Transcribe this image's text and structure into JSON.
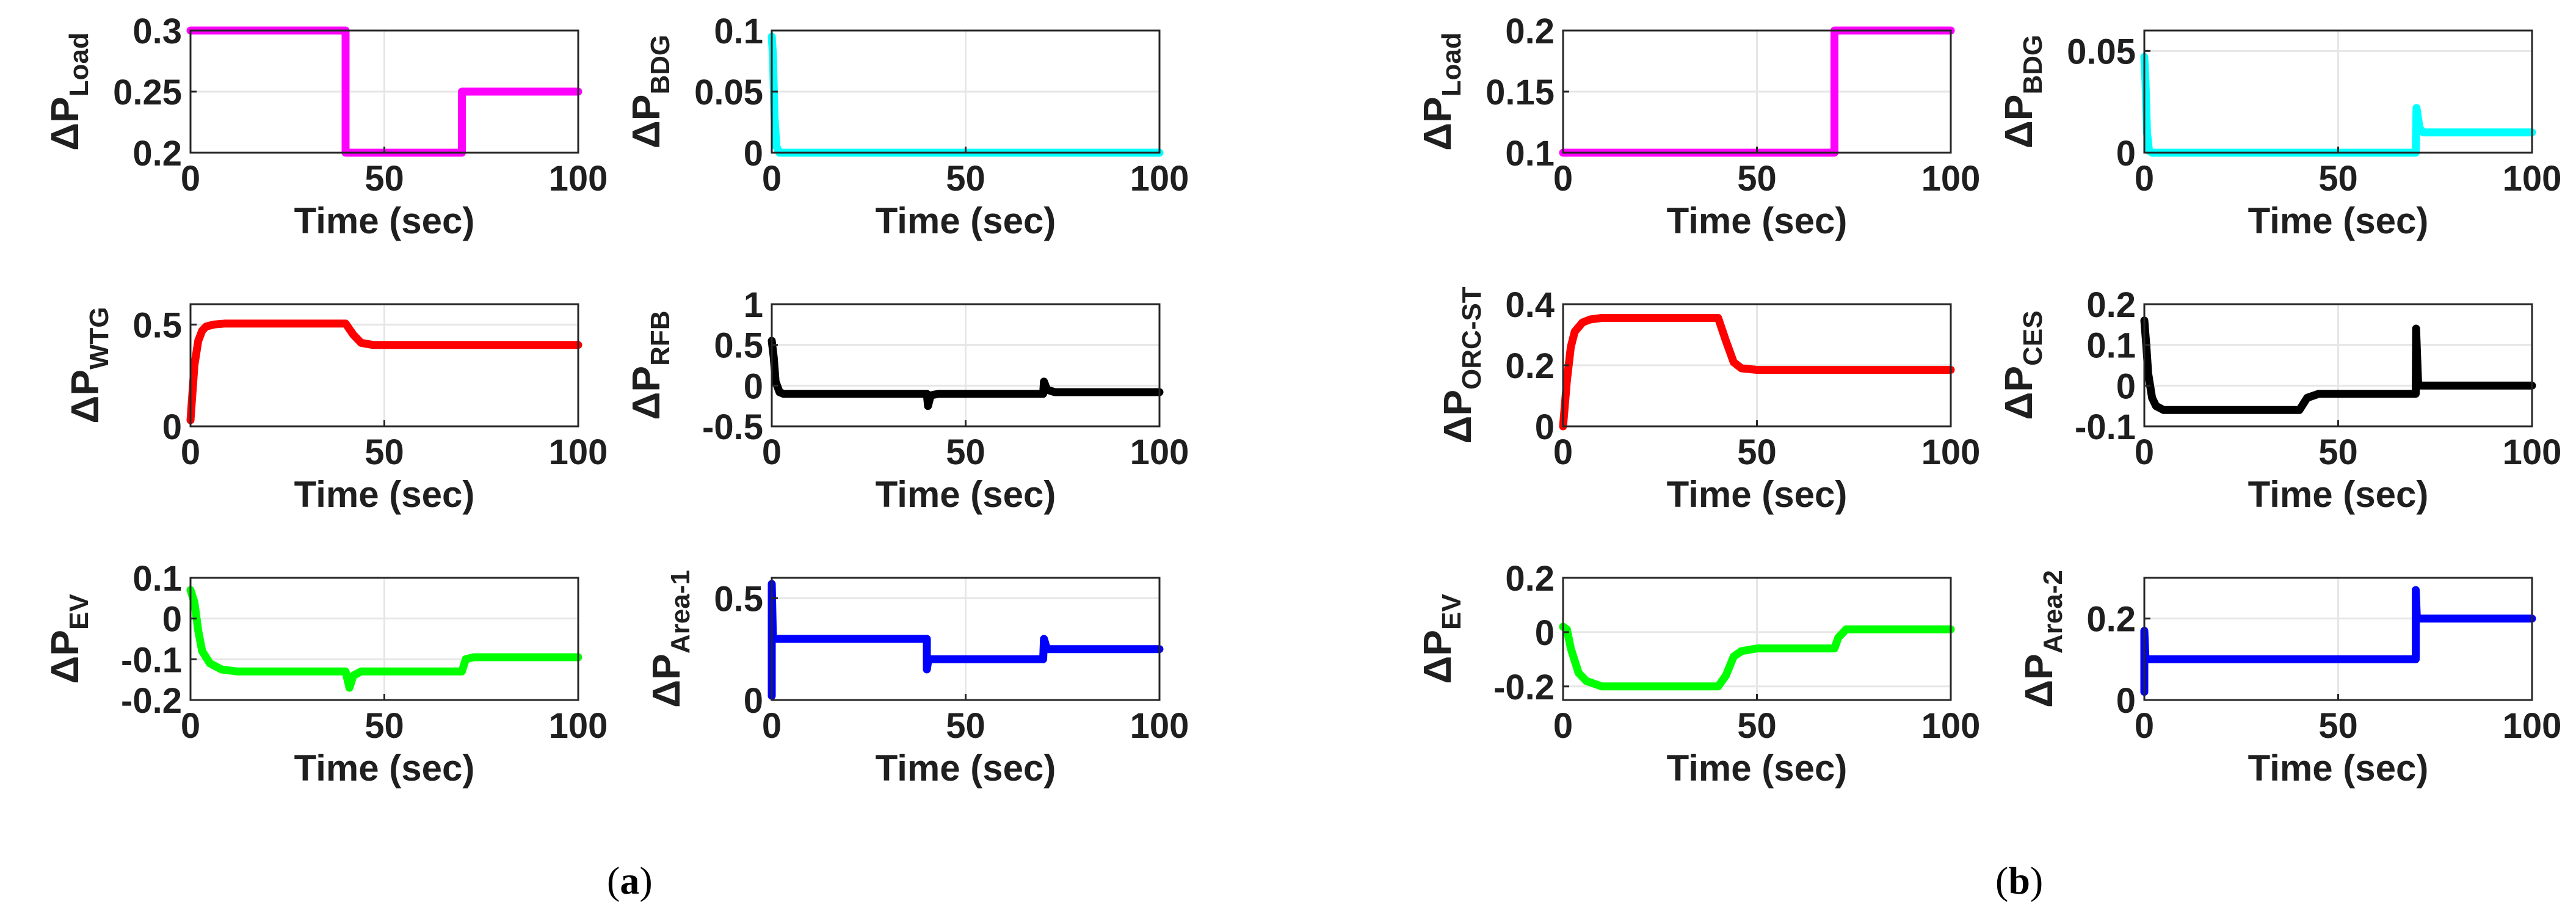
{
  "figure": {
    "caption_a": "a",
    "caption_b": "b"
  },
  "chart_data": [
    {
      "id": "a1",
      "type": "line",
      "ylabel_main": "ΔP",
      "ylabel_sub": "Load",
      "xlabel": "Time (sec)",
      "xlim": [
        0,
        100
      ],
      "ylim": [
        0.2,
        0.3
      ],
      "xticks": [
        "0",
        "50",
        "100"
      ],
      "yticks": [
        {
          "v": 0.2,
          "label": "0.2"
        },
        {
          "v": 0.25,
          "label": "0.25"
        },
        {
          "v": 0.3,
          "label": "0.3"
        }
      ],
      "color": "#ff00ff",
      "x": [
        0,
        40,
        40,
        70,
        70,
        100
      ],
      "y": [
        0.3,
        0.3,
        0.2,
        0.2,
        0.25,
        0.25
      ]
    },
    {
      "id": "a2",
      "type": "line",
      "ylabel_main": "ΔP",
      "ylabel_sub": "BDG",
      "xlabel": "Time (sec)",
      "xlim": [
        0,
        100
      ],
      "ylim": [
        0,
        0.1
      ],
      "xticks": [
        "0",
        "50",
        "100"
      ],
      "yticks": [
        {
          "v": 0,
          "label": "0"
        },
        {
          "v": 0.05,
          "label": "0.05"
        },
        {
          "v": 0.1,
          "label": "0.1"
        }
      ],
      "color": "#00ffff",
      "x": [
        0,
        0.3,
        0.7,
        1.2,
        2,
        100
      ],
      "y": [
        0.095,
        0.08,
        0.03,
        0.005,
        0,
        0
      ]
    },
    {
      "id": "a3",
      "type": "line",
      "ylabel_main": "ΔP",
      "ylabel_sub": "WTG",
      "xlabel": "Time (sec)",
      "xlim": [
        0,
        100
      ],
      "ylim": [
        0,
        0.6
      ],
      "xticks": [
        "0",
        "50",
        "100"
      ],
      "yticks": [
        {
          "v": 0,
          "label": "0"
        },
        {
          "v": 0.5,
          "label": "0.5"
        }
      ],
      "color": "#ff0000",
      "x": [
        0,
        1,
        2,
        3,
        4,
        6,
        9,
        12,
        40,
        42,
        44,
        47,
        50,
        100
      ],
      "y": [
        0.03,
        0.3,
        0.42,
        0.47,
        0.49,
        0.5,
        0.505,
        0.505,
        0.505,
        0.45,
        0.41,
        0.4,
        0.4,
        0.4
      ]
    },
    {
      "id": "a4",
      "type": "line",
      "ylabel_main": "ΔP",
      "ylabel_sub": "RFB",
      "xlabel": "Time (sec)",
      "xlim": [
        0,
        100
      ],
      "ylim": [
        -0.5,
        1
      ],
      "xticks": [
        "0",
        "50",
        "100"
      ],
      "yticks": [
        {
          "v": -0.5,
          "label": "-0.5"
        },
        {
          "v": 0,
          "label": "0"
        },
        {
          "v": 0.5,
          "label": "0.5"
        },
        {
          "v": 1,
          "label": "1"
        }
      ],
      "color": "#000000",
      "x": [
        0,
        0.5,
        1,
        2,
        3,
        40,
        40.3,
        41,
        43,
        70,
        70.2,
        71,
        73,
        100
      ],
      "y": [
        0.55,
        0.35,
        0.05,
        -0.08,
        -0.1,
        -0.1,
        -0.25,
        -0.12,
        -0.1,
        -0.1,
        0.05,
        -0.05,
        -0.08,
        -0.08
      ]
    },
    {
      "id": "a5",
      "type": "line",
      "ylabel_main": "ΔP",
      "ylabel_sub": "EV",
      "xlabel": "Time (sec)",
      "xlim": [
        0,
        100
      ],
      "ylim": [
        -0.2,
        0.1
      ],
      "xticks": [
        "0",
        "50",
        "100"
      ],
      "yticks": [
        {
          "v": -0.2,
          "label": "-0.2"
        },
        {
          "v": -0.1,
          "label": "-0.1"
        },
        {
          "v": 0,
          "label": "0"
        },
        {
          "v": 0.1,
          "label": "0.1"
        }
      ],
      "color": "#00ff00",
      "x": [
        0,
        1,
        2,
        3,
        5,
        8,
        12,
        40,
        41,
        42,
        44,
        70,
        71,
        73,
        100
      ],
      "y": [
        0.07,
        0.04,
        -0.03,
        -0.08,
        -0.11,
        -0.125,
        -0.13,
        -0.13,
        -0.17,
        -0.14,
        -0.13,
        -0.13,
        -0.1,
        -0.095,
        -0.095
      ]
    },
    {
      "id": "a6",
      "type": "line",
      "ylabel_main": "ΔP",
      "ylabel_sub": "Area-1",
      "xlabel": "Time (sec)",
      "xlim": [
        0,
        100
      ],
      "ylim": [
        0,
        0.6
      ],
      "xticks": [
        "0",
        "50",
        "100"
      ],
      "yticks": [
        {
          "v": 0,
          "label": "0"
        },
        {
          "v": 0.5,
          "label": "0.5"
        }
      ],
      "color": "#0000ff",
      "x": [
        0,
        0,
        0.3,
        0.8,
        40,
        40,
        40.4,
        41,
        70,
        70.2,
        71,
        100
      ],
      "y": [
        0.02,
        0.57,
        0.3,
        0.3,
        0.3,
        0.15,
        0.2,
        0.2,
        0.2,
        0.3,
        0.25,
        0.25
      ]
    },
    {
      "id": "b1",
      "type": "line",
      "ylabel_main": "ΔP",
      "ylabel_sub": "Load",
      "xlabel": "Time (sec)",
      "xlim": [
        0,
        100
      ],
      "ylim": [
        0.1,
        0.2
      ],
      "xticks": [
        "0",
        "50",
        "100"
      ],
      "yticks": [
        {
          "v": 0.1,
          "label": "0.1"
        },
        {
          "v": 0.15,
          "label": "0.15"
        },
        {
          "v": 0.2,
          "label": "0.2"
        }
      ],
      "color": "#ff00ff",
      "x": [
        0,
        70,
        70,
        100
      ],
      "y": [
        0.1,
        0.1,
        0.2,
        0.2
      ]
    },
    {
      "id": "b2",
      "type": "line",
      "ylabel_main": "ΔP",
      "ylabel_sub": "BDG",
      "xlabel": "Time (sec)",
      "xlim": [
        0,
        100
      ],
      "ylim": [
        0,
        0.06
      ],
      "xticks": [
        "0",
        "50",
        "100"
      ],
      "yticks": [
        {
          "v": 0,
          "label": "0"
        },
        {
          "v": 0.05,
          "label": "0.05"
        }
      ],
      "color": "#00ffff",
      "x": [
        0,
        0.3,
        0.7,
        1.2,
        2,
        70,
        70.2,
        71,
        72,
        100
      ],
      "y": [
        0.047,
        0.035,
        0.01,
        0.001,
        0,
        0,
        0.022,
        0.012,
        0.01,
        0.01
      ]
    },
    {
      "id": "b3",
      "type": "line",
      "ylabel_main": "ΔP",
      "ylabel_sub": "ORC-ST",
      "xlabel": "Time (sec)",
      "xlim": [
        0,
        100
      ],
      "ylim": [
        0,
        0.4
      ],
      "xticks": [
        "0",
        "50",
        "100"
      ],
      "yticks": [
        {
          "v": 0,
          "label": "0"
        },
        {
          "v": 0.2,
          "label": "0.2"
        },
        {
          "v": 0.4,
          "label": "0.4"
        }
      ],
      "color": "#ff0000",
      "x": [
        0,
        1,
        2,
        3,
        5,
        7,
        10,
        40,
        42,
        44,
        46,
        50,
        100
      ],
      "y": [
        0,
        0.15,
        0.26,
        0.31,
        0.34,
        0.35,
        0.355,
        0.355,
        0.28,
        0.21,
        0.19,
        0.185,
        0.185
      ]
    },
    {
      "id": "b4",
      "type": "line",
      "ylabel_main": "ΔP",
      "ylabel_sub": "CES",
      "xlabel": "Time (sec)",
      "xlim": [
        0,
        100
      ],
      "ylim": [
        -0.1,
        0.2
      ],
      "xticks": [
        "0",
        "50",
        "100"
      ],
      "yticks": [
        {
          "v": -0.1,
          "label": "-0.1"
        },
        {
          "v": 0,
          "label": "0"
        },
        {
          "v": 0.1,
          "label": "0.1"
        },
        {
          "v": 0.2,
          "label": "0.2"
        }
      ],
      "color": "#000000",
      "x": [
        0,
        0.5,
        1,
        2,
        3,
        5,
        10,
        40,
        42,
        45,
        70,
        70.1,
        70.6,
        71,
        73,
        100
      ],
      "y": [
        0.16,
        0.1,
        0.03,
        -0.03,
        -0.05,
        -0.06,
        -0.06,
        -0.06,
        -0.03,
        -0.02,
        -0.02,
        0.14,
        0.01,
        0,
        0,
        0
      ]
    },
    {
      "id": "b5",
      "type": "line",
      "ylabel_main": "ΔP",
      "ylabel_sub": "EV",
      "xlabel": "Time (sec)",
      "xlim": [
        0,
        100
      ],
      "ylim": [
        -0.25,
        0.2
      ],
      "xticks": [
        "0",
        "50",
        "100"
      ],
      "yticks": [
        {
          "v": -0.2,
          "label": "-0.2"
        },
        {
          "v": 0,
          "label": "0"
        },
        {
          "v": 0.2,
          "label": "0.2"
        }
      ],
      "color": "#00ff00",
      "x": [
        0,
        1,
        2,
        4,
        6,
        10,
        40,
        42,
        44,
        46,
        50,
        70,
        71,
        73,
        100
      ],
      "y": [
        0.02,
        0.01,
        -0.06,
        -0.15,
        -0.18,
        -0.2,
        -0.2,
        -0.16,
        -0.09,
        -0.07,
        -0.06,
        -0.06,
        -0.02,
        0.01,
        0.01
      ]
    },
    {
      "id": "b6",
      "type": "line",
      "ylabel_main": "ΔP",
      "ylabel_sub": "Area-2",
      "xlabel": "Time (sec)",
      "xlim": [
        0,
        100
      ],
      "ylim": [
        0,
        0.3
      ],
      "xticks": [
        "0",
        "50",
        "100"
      ],
      "yticks": [
        {
          "v": 0,
          "label": "0"
        },
        {
          "v": 0.2,
          "label": "0.2"
        }
      ],
      "color": "#0000ff",
      "x": [
        0,
        0,
        0.3,
        0.8,
        70,
        70,
        70.3,
        71,
        100
      ],
      "y": [
        0.02,
        0.17,
        0.1,
        0.1,
        0.1,
        0.27,
        0.2,
        0.2,
        0.2
      ]
    }
  ]
}
